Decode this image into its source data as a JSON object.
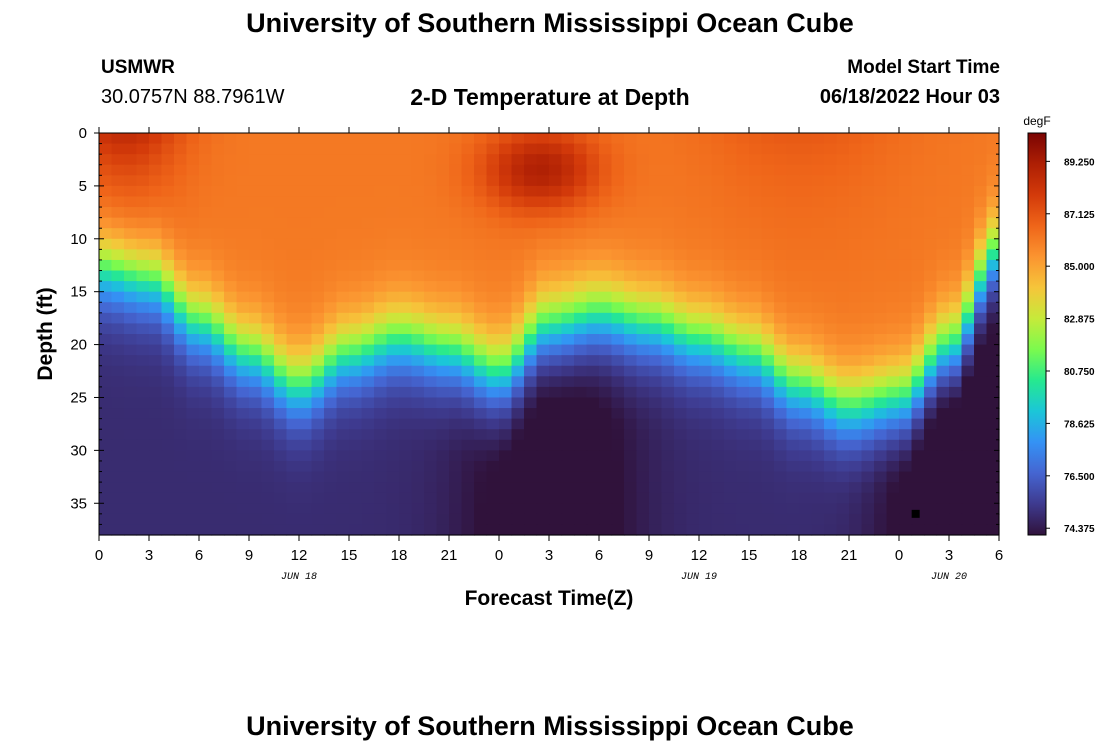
{
  "header": {
    "title": "University of Southern Mississippi Ocean Cube",
    "station": "USMWR",
    "coords": "30.0757N  88.7961W",
    "subtitle": "2-D Temperature at Depth",
    "model_start_label": "Model Start Time",
    "model_start_value": "06/18/2022 Hour 03"
  },
  "footer": {
    "title": "University of Southern Mississippi Ocean Cube"
  },
  "colors": {
    "stops": [
      "#30123b",
      "#3e3a8e",
      "#4565d1",
      "#3492f5",
      "#1bc6d8",
      "#26e98f",
      "#7bfa4e",
      "#c6ea3a",
      "#f6c53a",
      "#fb9430",
      "#ef6519",
      "#d33a0a",
      "#ae1f04",
      "#7a0403"
    ]
  },
  "chart_data": {
    "type": "heatmap",
    "title": "2-D Temperature at Depth",
    "xlabel": "Forecast Time(Z)",
    "ylabel": "Depth (ft)",
    "x_tick_labels": [
      "0",
      "3",
      "6",
      "9",
      "12",
      "15",
      "18",
      "21",
      "0",
      "3",
      "6",
      "9",
      "12",
      "15",
      "18",
      "21",
      "0",
      "3",
      "6"
    ],
    "x_range_hours": [
      0,
      54
    ],
    "y_ticks": [
      0,
      5,
      10,
      15,
      20,
      25,
      30,
      35
    ],
    "y_range": [
      0,
      38
    ],
    "date_labels": [
      {
        "label": "JUN 18",
        "hour": 12
      },
      {
        "label": "JUN 19",
        "hour": 36
      },
      {
        "label": "JUN 20",
        "hour": 51
      }
    ],
    "colorbar": {
      "unit": "degF",
      "min": 74.1,
      "max": 90.4,
      "tick_labels": [
        "89.250",
        "87.125",
        "85.000",
        "82.875",
        "80.750",
        "78.625",
        "76.500",
        "74.375"
      ]
    },
    "thermocline_depth_by_hour": [
      [
        0,
        13
      ],
      [
        3,
        14
      ],
      [
        6,
        18
      ],
      [
        9,
        21
      ],
      [
        12,
        24
      ],
      [
        15,
        21
      ],
      [
        18,
        19.5
      ],
      [
        21,
        20.5
      ],
      [
        24,
        22.5
      ],
      [
        27,
        18
      ],
      [
        30,
        17
      ],
      [
        33,
        18
      ],
      [
        36,
        19.5
      ],
      [
        39,
        21
      ],
      [
        42,
        24
      ],
      [
        45,
        26
      ],
      [
        48,
        25
      ],
      [
        51,
        20
      ],
      [
        54,
        11
      ]
    ],
    "marker": {
      "hour": 49,
      "depth": 36
    }
  }
}
